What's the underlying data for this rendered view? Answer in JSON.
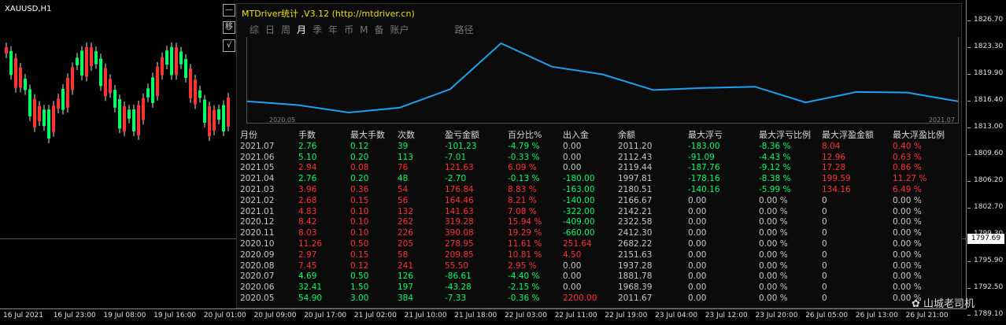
{
  "symbol": "XAUUSD,H1",
  "buttons": {
    "collapse": "—",
    "toggle": "移",
    "check": "√"
  },
  "panel": {
    "title": "MTDriver统计 ,V3.12 (http://mtdriver.cn)",
    "tabs": [
      "综",
      "日",
      "周",
      "月",
      "季",
      "年",
      "币",
      "M",
      "备",
      "账户",
      "路径"
    ],
    "active_tab": "月",
    "plot_start": "2020.05",
    "plot_end": "2021.07"
  },
  "table": {
    "headers": [
      "月份",
      "手数",
      "最大手数",
      "次数",
      "盈亏金额",
      "百分比%",
      "出入金",
      "余额",
      "最大浮亏",
      "最大浮亏比例",
      "最大浮盈金额",
      "最大浮盈比例"
    ],
    "rows": [
      [
        "2021.07",
        "2.76",
        "0.12",
        "39",
        "-101.23",
        "-4.79 %",
        "0.00",
        "2011.20",
        "-183.00",
        "-8.36 %",
        "8.04",
        "0.40 %"
      ],
      [
        "2021.06",
        "5.10",
        "0.20",
        "113",
        "-7.01",
        "-0.33 %",
        "0.00",
        "2112.43",
        "-91.09",
        "-4.43 %",
        "12.96",
        "0.63 %"
      ],
      [
        "2021.05",
        "2.94",
        "0.08",
        "76",
        "121.63",
        "6.09 %",
        "0.00",
        "2119.44",
        "-187.76",
        "-9.12 %",
        "17.28",
        "0.86 %"
      ],
      [
        "2021.04",
        "2.76",
        "0.20",
        "48",
        "-2.70",
        "-0.13 %",
        "-180.00",
        "1997.81",
        "-178.16",
        "-8.38 %",
        "199.59",
        "11.27 %"
      ],
      [
        "2021.03",
        "3.96",
        "0.36",
        "54",
        "176.84",
        "8.83 %",
        "-163.00",
        "2180.51",
        "-140.16",
        "-5.99 %",
        "134.16",
        "6.49 %"
      ],
      [
        "2021.02",
        "2.68",
        "0.15",
        "56",
        "164.46",
        "8.21 %",
        "-140.00",
        "2166.67",
        "0.00",
        "0.00 %",
        "0",
        "0.00 %"
      ],
      [
        "2021.01",
        "4.83",
        "0.10",
        "132",
        "141.63",
        "7.08 %",
        "-322.00",
        "2142.21",
        "0.00",
        "0.00 %",
        "0",
        "0.00 %"
      ],
      [
        "2020.12",
        "8.42",
        "0.10",
        "262",
        "319.28",
        "15.94 %",
        "-409.00",
        "2322.58",
        "0.00",
        "0.00 %",
        "0",
        "0.00 %"
      ],
      [
        "2020.11",
        "8.03",
        "0.10",
        "226",
        "390.08",
        "19.29 %",
        "-660.00",
        "2412.30",
        "0.00",
        "0.00 %",
        "0",
        "0.00 %"
      ],
      [
        "2020.10",
        "11.26",
        "0.50",
        "205",
        "278.95",
        "11.61 %",
        "251.64",
        "2682.22",
        "0.00",
        "0.00 %",
        "0",
        "0.00 %"
      ],
      [
        "2020.09",
        "2.97",
        "0.15",
        "58",
        "209.85",
        "10.81 %",
        "4.50",
        "2151.63",
        "0.00",
        "0.00 %",
        "0",
        "0.00 %"
      ],
      [
        "2020.08",
        "7.45",
        "0.12",
        "241",
        "55.50",
        "2.95 %",
        "0.00",
        "1937.28",
        "0.00",
        "0.00 %",
        "0",
        "0.00 %"
      ],
      [
        "2020.07",
        "4.69",
        "0.50",
        "126",
        "-86.61",
        "-4.40 %",
        "0.00",
        "1881.78",
        "0.00",
        "0.00 %",
        "0",
        "0.00 %"
      ],
      [
        "2020.06",
        "32.41",
        "1.50",
        "197",
        "-43.28",
        "-2.15 %",
        "0.00",
        "1968.39",
        "0.00",
        "0.00 %",
        "0",
        "0.00 %"
      ],
      [
        "2020.05",
        "54.90",
        "3.00",
        "384",
        "-7.33",
        "-0.36 %",
        "2200.00",
        "2011.67",
        "0.00",
        "0.00 %",
        "0",
        "0.00 %"
      ]
    ],
    "row_colors": [
      "green",
      "green",
      "red",
      "green",
      "red",
      "red",
      "red",
      "red",
      "red",
      "red",
      "red",
      "red",
      "green",
      "green",
      "green"
    ]
  },
  "balance_curve": [
    2011.67,
    1968.39,
    1881.78,
    1937.28,
    2151.63,
    2682.22,
    2412.3,
    2322.58,
    2142.21,
    2166.67,
    2180.51,
    1997.81,
    2119.44,
    2112.43,
    2011.2
  ],
  "y_axis": [
    "1826.70",
    "1823.30",
    "1819.90",
    "1816.40",
    "1813.00",
    "1809.60",
    "1806.20",
    "1802.70",
    "1799.30",
    "1795.90",
    "1792.50",
    "1789.10"
  ],
  "current_price": "1797.69",
  "x_axis": [
    "16 Jul 2021",
    "16 Jul 23:00",
    "19 Jul 08:00",
    "19 Jul 16:00",
    "20 Jul 01:00",
    "20 Jul 09:00",
    "20 Jul 17:00",
    "21 Jul 02:00",
    "21 Jul 10:00",
    "21 Jul 18:00",
    "22 Jul 03:00",
    "22 Jul 11:00",
    "22 Jul 19:00",
    "23 Jul 04:00",
    "23 Jul 12:00",
    "23 Jul 20:00",
    "26 Jul 05:00",
    "26 Jul 13:00",
    "26 Jul 21:00"
  ],
  "watermark": "山城老司机",
  "colors": {
    "green": "#00ff66",
    "red": "#ff3333",
    "curve": "#1ea0f0",
    "title": "#f0e000"
  }
}
